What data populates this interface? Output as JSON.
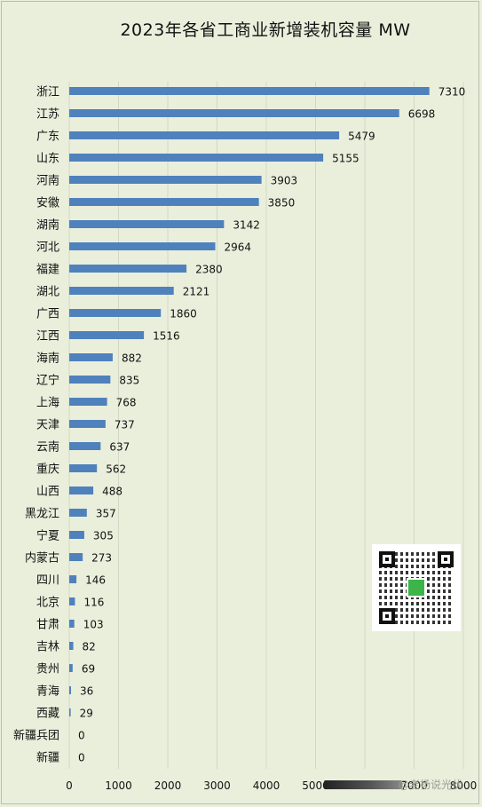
{
  "chart_data": {
    "type": "bar",
    "orientation": "horizontal",
    "title": "2023年各省工商业新增装机容量 MW",
    "categories": [
      "浙江",
      "江苏",
      "广东",
      "山东",
      "河南",
      "安徽",
      "湖南",
      "河北",
      "福建",
      "湖北",
      "广西",
      "江西",
      "海南",
      "辽宁",
      "上海",
      "天津",
      "云南",
      "重庆",
      "山西",
      "黑龙江",
      "宁夏",
      "内蒙古",
      "四川",
      "北京",
      "甘肃",
      "吉林",
      "贵州",
      "青海",
      "西藏",
      "新疆兵团",
      "新疆"
    ],
    "values": [
      7310,
      6698,
      5479,
      5155,
      3903,
      3850,
      3142,
      2964,
      2380,
      2121,
      1860,
      1516,
      882,
      835,
      768,
      737,
      637,
      562,
      488,
      357,
      305,
      273,
      146,
      116,
      103,
      82,
      69,
      36,
      29,
      0,
      0
    ],
    "xlim": [
      0,
      8000
    ],
    "xticks": [
      0,
      1000,
      2000,
      3000,
      4000,
      5000,
      6000,
      7000,
      8000
    ],
    "bar_color": "#4f81bd",
    "grid": true,
    "data_labels": true
  },
  "watermark": "@老杨说光伏"
}
